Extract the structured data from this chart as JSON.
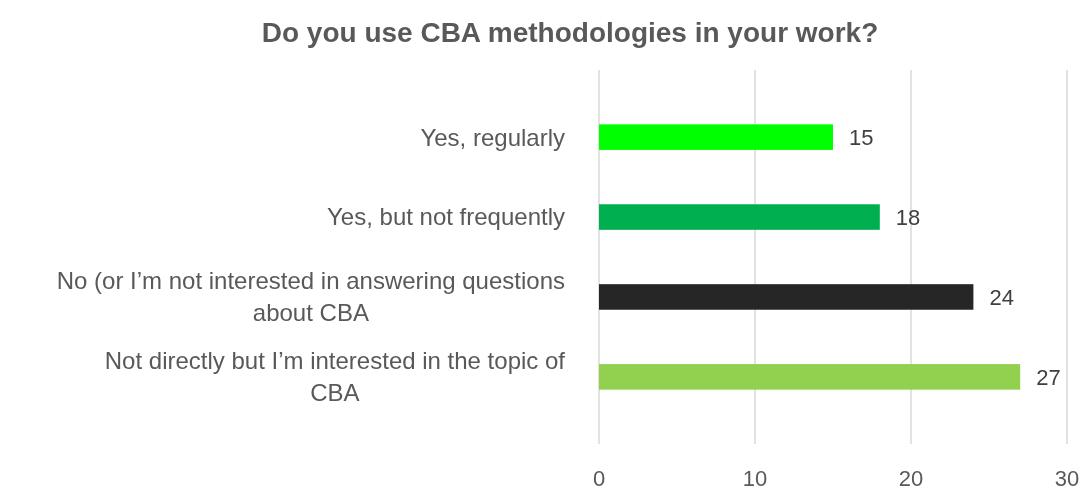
{
  "chart_data": {
    "type": "bar",
    "orientation": "horizontal",
    "title": "Do you use CBA methodologies in your work?",
    "categories": [
      "Yes, regularly",
      "Yes, but not frequently",
      "No (or I’m not interested in answering questions about CBA",
      "Not directly but I’m interested in the topic of CBA"
    ],
    "values": [
      15,
      18,
      24,
      27
    ],
    "colors": [
      "#00ff00",
      "#00b050",
      "#262626",
      "#92d050"
    ],
    "xlim": [
      0,
      30
    ],
    "xticks": [
      0,
      10,
      20,
      30
    ],
    "grid": "x",
    "data_labels": true
  }
}
